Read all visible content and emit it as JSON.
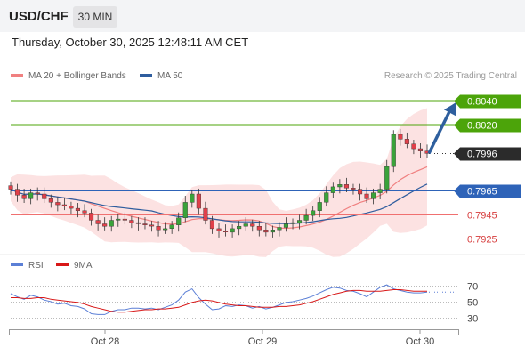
{
  "header": {
    "symbol": "USD/CHF",
    "timeframe": "30 MIN"
  },
  "datetime": "Thursday, October 30, 2025 12:48:11 AM CET",
  "legend": {
    "ma20": "MA 20 + Bollinger Bands",
    "ma50": "MA 50",
    "rsi": "RSI",
    "ma9": "9MA",
    "copyright": "Research © 2025 Trading Central"
  },
  "colors": {
    "bull": "#3aa33a",
    "bear": "#e0404a",
    "ma20": "#f08080",
    "ma50": "#2f5d9e",
    "band": "#fbd2d2",
    "resistance": "#4ca40a",
    "support": "#f07070",
    "pivot": "#2e63b8",
    "arrow": "#2e5f9e",
    "rsi": "#5b7fd6",
    "rsi_ma": "#d81818"
  },
  "chart_data": [
    {
      "type": "candlestick",
      "title": "",
      "x_ticks": [
        "Oct 28",
        "Oct 29",
        "Oct 30"
      ],
      "y_range": [
        0.7912,
        0.8053
      ],
      "levels": [
        {
          "value": "0.8040",
          "kind": "resistance"
        },
        {
          "value": "0.8020",
          "kind": "resistance"
        },
        {
          "value": "0.7996",
          "kind": "current"
        },
        {
          "value": "0.7965",
          "kind": "pivot"
        },
        {
          "value": "0.7945",
          "kind": "support"
        },
        {
          "value": "0.7925",
          "kind": "support"
        }
      ],
      "forecast_arrow": {
        "from": 0.7996,
        "to": 0.804
      },
      "close_approx": [
        0.7966,
        0.7961,
        0.7958,
        0.7963,
        0.7962,
        0.7958,
        0.7955,
        0.7953,
        0.7952,
        0.795,
        0.7948,
        0.7946,
        0.794,
        0.7937,
        0.7935,
        0.794,
        0.7941,
        0.794,
        0.7938,
        0.7937,
        0.7936,
        0.7935,
        0.7932,
        0.7933,
        0.7936,
        0.7942,
        0.7955,
        0.7962,
        0.795,
        0.794,
        0.7933,
        0.7931,
        0.793,
        0.7933,
        0.7935,
        0.7937,
        0.7935,
        0.7932,
        0.793,
        0.7932,
        0.7934,
        0.7937,
        0.7938,
        0.794,
        0.7944,
        0.7948,
        0.7955,
        0.7963,
        0.7968,
        0.797,
        0.7967,
        0.7966,
        0.7962,
        0.7958,
        0.7963,
        0.7966,
        0.7985,
        0.8012,
        0.8008,
        0.8004,
        0.8,
        0.7998,
        0.7996
      ]
    },
    {
      "type": "line",
      "title": "",
      "series": [
        {
          "name": "RSI"
        },
        {
          "name": "9MA"
        }
      ],
      "y_ticks": [
        "70",
        "50",
        "30"
      ],
      "y_range": [
        20,
        80
      ],
      "rsi_approx": [
        60,
        56,
        53,
        58,
        56,
        52,
        50,
        47,
        48,
        45,
        44,
        41,
        35,
        34,
        34,
        38,
        40,
        40,
        42,
        42,
        41,
        42,
        40,
        43,
        46,
        52,
        62,
        66,
        55,
        47,
        40,
        41,
        45,
        44,
        46,
        45,
        42,
        44,
        41,
        43,
        46,
        49,
        50,
        52,
        54,
        57,
        61,
        65,
        68,
        67,
        64,
        63,
        60,
        56,
        62,
        68,
        71,
        66,
        64,
        62,
        61,
        61,
        62
      ],
      "rsi_ma_approx": [
        55,
        55,
        54,
        54,
        55,
        55,
        53,
        52,
        51,
        50,
        49,
        47,
        44,
        42,
        40,
        38,
        37,
        37,
        38,
        39,
        40,
        40,
        41,
        41,
        42,
        43,
        46,
        49,
        51,
        52,
        51,
        49,
        47,
        46,
        45,
        45,
        44,
        43,
        43,
        43,
        44,
        44,
        45,
        46,
        48,
        50,
        53,
        56,
        59,
        61,
        63,
        64,
        64,
        63,
        63,
        63,
        64,
        65,
        65,
        64,
        63,
        63,
        63
      ]
    }
  ]
}
